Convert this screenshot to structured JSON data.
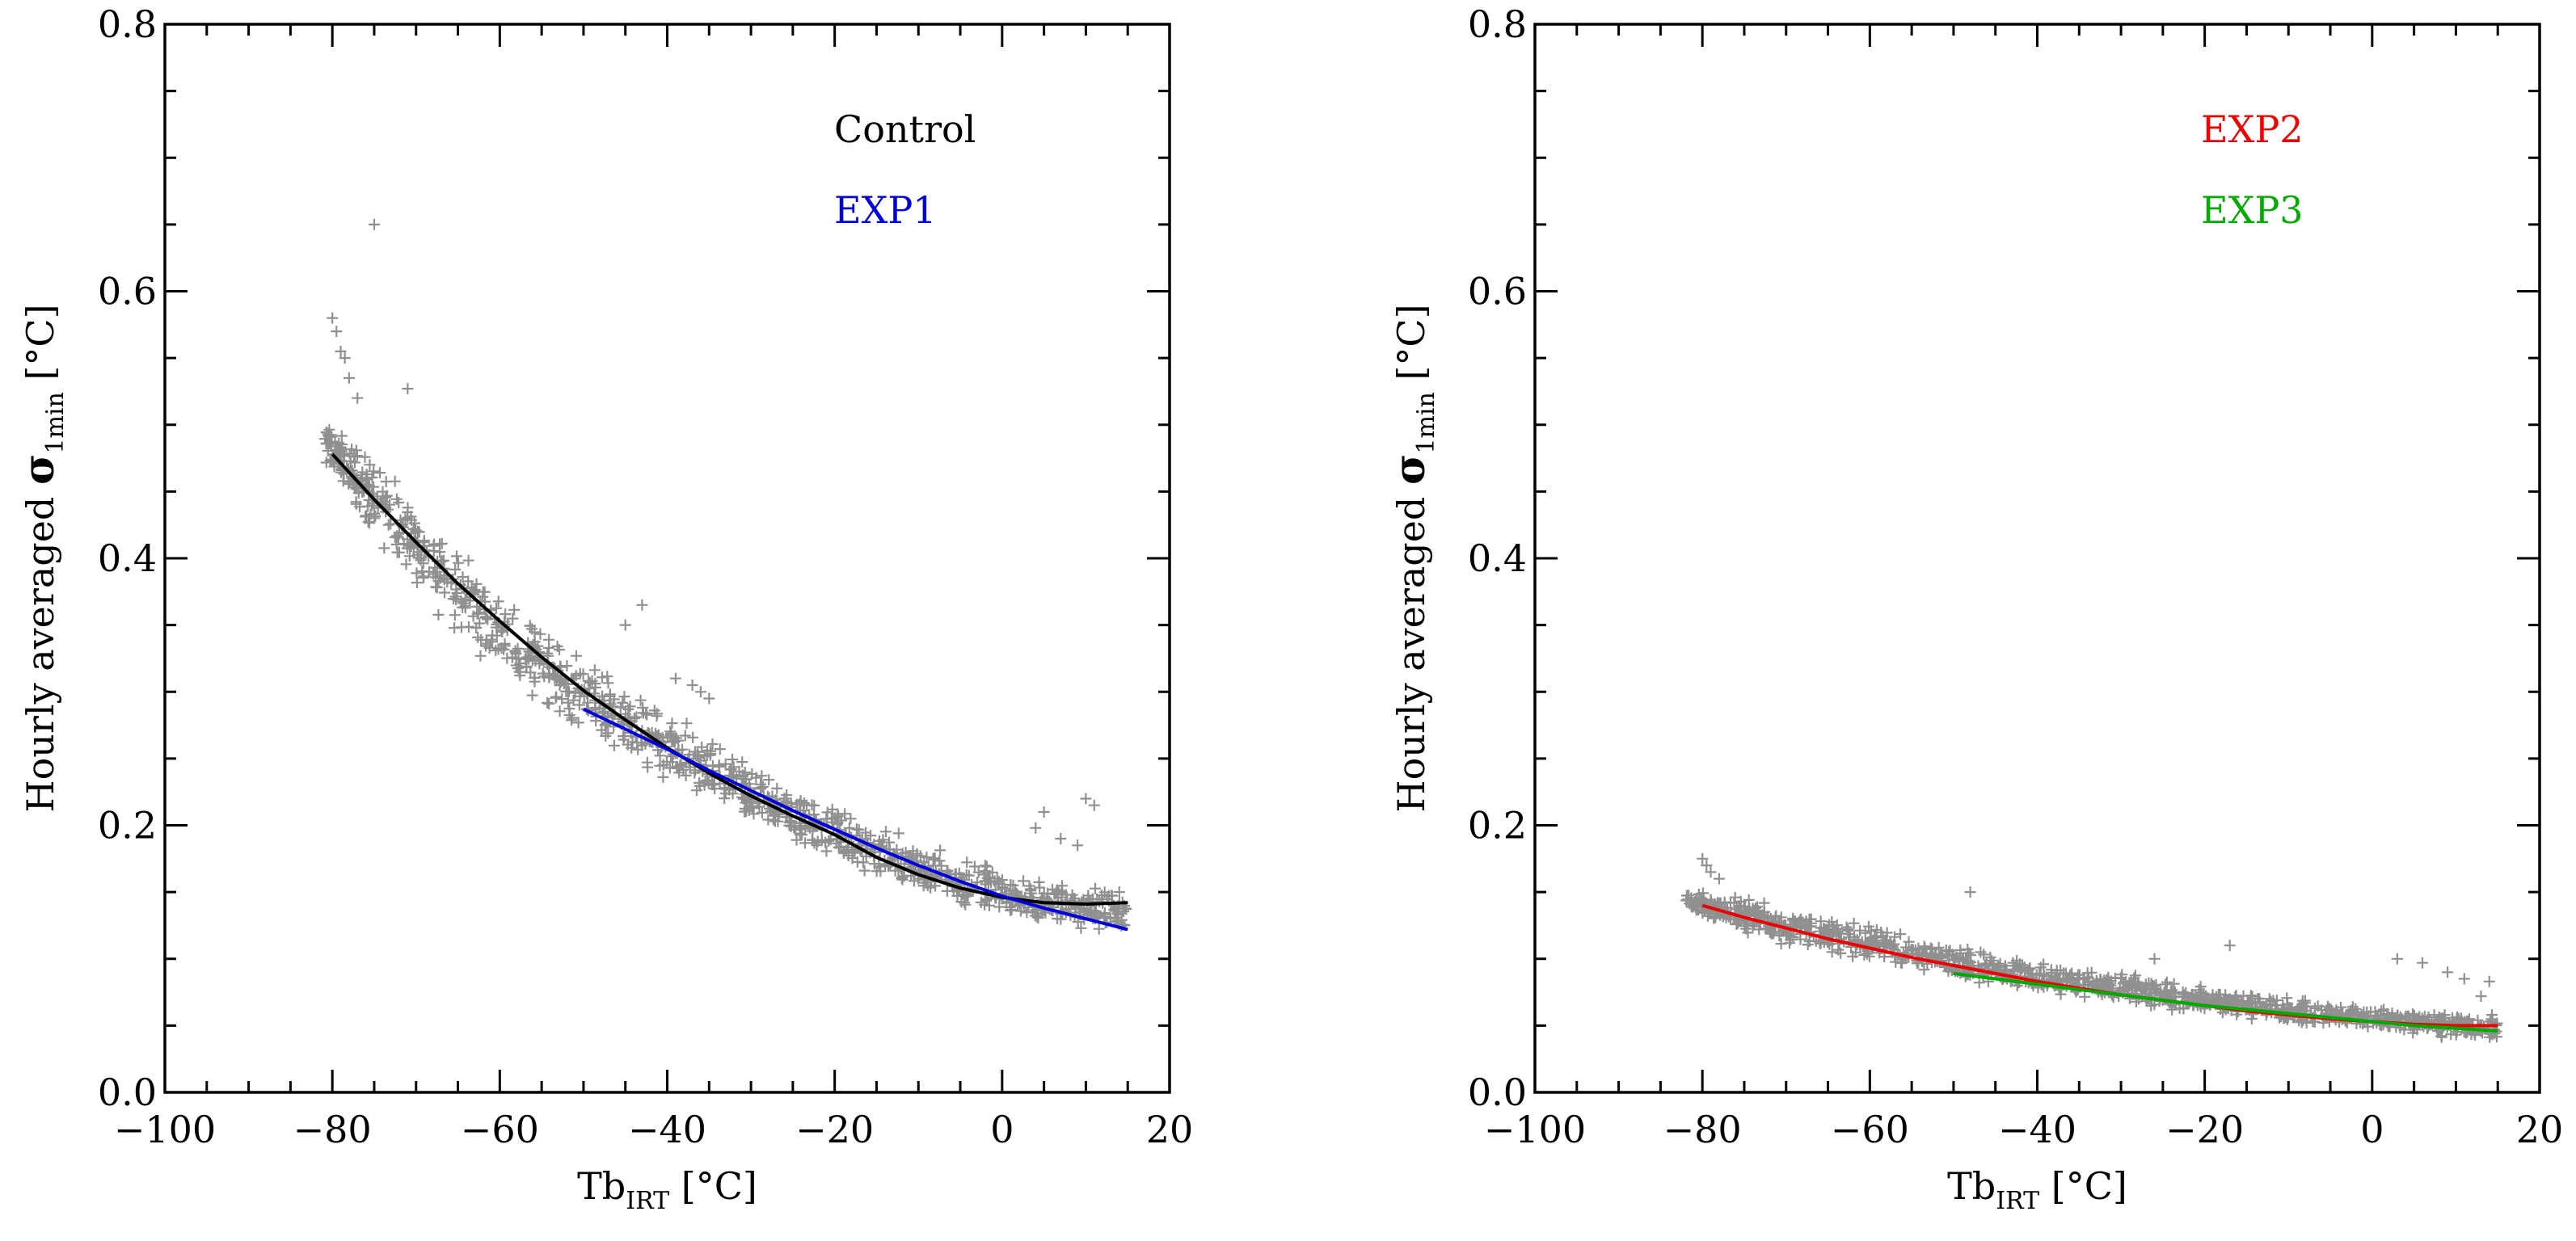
{
  "chart_data": [
    {
      "type": "scatter",
      "panel": "left",
      "xlabel": {
        "base": "Tb",
        "sub": "IRT",
        "unit": " [°C]"
      },
      "ylabel": {
        "prefix": "Hourly averaged ",
        "sigma": "σ",
        "sub": "1min",
        "unit": " [°C]"
      },
      "xlim": [
        -100,
        20
      ],
      "ylim": [
        0.0,
        0.8
      ],
      "xticks": [
        -100,
        -80,
        -60,
        -40,
        -20,
        0,
        20
      ],
      "xtick_labels": [
        "−100",
        "−80",
        "−60",
        "−40",
        "−20",
        "0",
        "20"
      ],
      "yticks": [
        0.0,
        0.2,
        0.4,
        0.6,
        0.8
      ],
      "ytick_labels": [
        "0.0",
        "0.2",
        "0.4",
        "0.6",
        "0.8"
      ],
      "legend_position": "top-right",
      "scatter": {
        "color": "#909090",
        "marker": "+",
        "band": [
          {
            "x": -81,
            "lo": 0.47,
            "hi": 0.505
          },
          {
            "x": -78,
            "lo": 0.44,
            "hi": 0.495
          },
          {
            "x": -75,
            "lo": 0.41,
            "hi": 0.48
          },
          {
            "x": -70,
            "lo": 0.37,
            "hi": 0.45
          },
          {
            "x": -65,
            "lo": 0.335,
            "hi": 0.415
          },
          {
            "x": -60,
            "lo": 0.31,
            "hi": 0.385
          },
          {
            "x": -55,
            "lo": 0.285,
            "hi": 0.355
          },
          {
            "x": -50,
            "lo": 0.265,
            "hi": 0.33
          },
          {
            "x": -45,
            "lo": 0.245,
            "hi": 0.31
          },
          {
            "x": -40,
            "lo": 0.225,
            "hi": 0.29
          },
          {
            "x": -35,
            "lo": 0.21,
            "hi": 0.27
          },
          {
            "x": -30,
            "lo": 0.195,
            "hi": 0.25
          },
          {
            "x": -25,
            "lo": 0.18,
            "hi": 0.235
          },
          {
            "x": -20,
            "lo": 0.165,
            "hi": 0.22
          },
          {
            "x": -15,
            "lo": 0.155,
            "hi": 0.205
          },
          {
            "x": -10,
            "lo": 0.145,
            "hi": 0.19
          },
          {
            "x": -5,
            "lo": 0.135,
            "hi": 0.18
          },
          {
            "x": 0,
            "lo": 0.128,
            "hi": 0.172
          },
          {
            "x": 5,
            "lo": 0.122,
            "hi": 0.165
          },
          {
            "x": 10,
            "lo": 0.116,
            "hi": 0.16
          },
          {
            "x": 15,
            "lo": 0.112,
            "hi": 0.155
          }
        ],
        "outliers": [
          {
            "x": -75,
            "y": 0.65
          },
          {
            "x": -80,
            "y": 0.58
          },
          {
            "x": -79.5,
            "y": 0.57
          },
          {
            "x": -79,
            "y": 0.555
          },
          {
            "x": -78.5,
            "y": 0.55
          },
          {
            "x": -78,
            "y": 0.535
          },
          {
            "x": -71,
            "y": 0.527
          },
          {
            "x": -77,
            "y": 0.52
          },
          {
            "x": -43,
            "y": 0.365
          },
          {
            "x": -45,
            "y": 0.35
          },
          {
            "x": -39,
            "y": 0.31
          },
          {
            "x": -36,
            "y": 0.3
          },
          {
            "x": -35,
            "y": 0.295
          },
          {
            "x": -37,
            "y": 0.305
          },
          {
            "x": 10,
            "y": 0.22
          },
          {
            "x": 11,
            "y": 0.215
          },
          {
            "x": 5,
            "y": 0.21
          },
          {
            "x": 4,
            "y": 0.198
          },
          {
            "x": 7,
            "y": 0.19
          },
          {
            "x": 9,
            "y": 0.185
          },
          {
            "x": 14,
            "y": 0.15
          }
        ]
      },
      "series": [
        {
          "name": "Control",
          "color": "#000000",
          "x": [
            -80,
            -75,
            -70,
            -65,
            -60,
            -55,
            -50,
            -45,
            -40,
            -35,
            -30,
            -25,
            -20,
            -15,
            -10,
            -5,
            0,
            5,
            10,
            15
          ],
          "y": [
            0.478,
            0.444,
            0.412,
            0.381,
            0.353,
            0.326,
            0.301,
            0.279,
            0.258,
            0.239,
            0.222,
            0.207,
            0.193,
            0.176,
            0.163,
            0.153,
            0.146,
            0.142,
            0.141,
            0.142
          ]
        },
        {
          "name": "EXP1",
          "color": "#0000DD",
          "x": [
            -50,
            -45,
            -40,
            -35,
            -30,
            -25,
            -20,
            -15,
            -10,
            -5,
            0,
            5,
            10,
            15
          ],
          "y": [
            0.287,
            0.272,
            0.257,
            0.241,
            0.226,
            0.211,
            0.197,
            0.183,
            0.17,
            0.158,
            0.147,
            0.138,
            0.13,
            0.122
          ]
        }
      ]
    },
    {
      "type": "scatter",
      "panel": "right",
      "xlabel": {
        "base": "Tb",
        "sub": "IRT",
        "unit": " [°C]"
      },
      "ylabel": {
        "prefix": "Hourly averaged ",
        "sigma": "σ",
        "sub": "1min",
        "unit": " [°C]"
      },
      "xlim": [
        -100,
        20
      ],
      "ylim": [
        0.0,
        0.8
      ],
      "xticks": [
        -100,
        -80,
        -60,
        -40,
        -20,
        0,
        20
      ],
      "xtick_labels": [
        "−100",
        "−80",
        "−60",
        "−40",
        "−20",
        "0",
        "20"
      ],
      "yticks": [
        0.0,
        0.2,
        0.4,
        0.6,
        0.8
      ],
      "ytick_labels": [
        "0.0",
        "0.2",
        "0.4",
        "0.6",
        "0.8"
      ],
      "legend_position": "top-right",
      "scatter": {
        "color": "#909090",
        "marker": "+",
        "band": [
          {
            "x": -82,
            "lo": 0.135,
            "hi": 0.155
          },
          {
            "x": -78,
            "lo": 0.122,
            "hi": 0.15
          },
          {
            "x": -74,
            "lo": 0.115,
            "hi": 0.148
          },
          {
            "x": -70,
            "lo": 0.108,
            "hi": 0.142
          },
          {
            "x": -65,
            "lo": 0.101,
            "hi": 0.135
          },
          {
            "x": -60,
            "lo": 0.095,
            "hi": 0.127
          },
          {
            "x": -55,
            "lo": 0.089,
            "hi": 0.12
          },
          {
            "x": -50,
            "lo": 0.084,
            "hi": 0.113
          },
          {
            "x": -45,
            "lo": 0.078,
            "hi": 0.107
          },
          {
            "x": -40,
            "lo": 0.073,
            "hi": 0.101
          },
          {
            "x": -35,
            "lo": 0.068,
            "hi": 0.096
          },
          {
            "x": -30,
            "lo": 0.064,
            "hi": 0.091
          },
          {
            "x": -25,
            "lo": 0.06,
            "hi": 0.086
          },
          {
            "x": -20,
            "lo": 0.056,
            "hi": 0.081
          },
          {
            "x": -15,
            "lo": 0.053,
            "hi": 0.077
          },
          {
            "x": -10,
            "lo": 0.05,
            "hi": 0.073
          },
          {
            "x": -5,
            "lo": 0.047,
            "hi": 0.07
          },
          {
            "x": 0,
            "lo": 0.044,
            "hi": 0.067
          },
          {
            "x": 5,
            "lo": 0.041,
            "hi": 0.064
          },
          {
            "x": 10,
            "lo": 0.039,
            "hi": 0.062
          },
          {
            "x": 15,
            "lo": 0.036,
            "hi": 0.06
          }
        ],
        "outliers": [
          {
            "x": -80,
            "y": 0.175
          },
          {
            "x": -79.5,
            "y": 0.17
          },
          {
            "x": -79,
            "y": 0.165
          },
          {
            "x": -78,
            "y": 0.16
          },
          {
            "x": -48,
            "y": 0.15
          },
          {
            "x": -17,
            "y": 0.11
          },
          {
            "x": -26,
            "y": 0.1
          },
          {
            "x": 3,
            "y": 0.1
          },
          {
            "x": 6,
            "y": 0.097
          },
          {
            "x": 9,
            "y": 0.09
          },
          {
            "x": 11,
            "y": 0.085
          },
          {
            "x": 14,
            "y": 0.083
          },
          {
            "x": 13,
            "y": 0.072
          }
        ]
      },
      "series": [
        {
          "name": "EXP2",
          "color": "#EE0000",
          "x": [
            -80,
            -75,
            -70,
            -65,
            -60,
            -55,
            -50,
            -45,
            -40,
            -35,
            -30,
            -25,
            -20,
            -15,
            -10,
            -5,
            0,
            5,
            10,
            15
          ],
          "y": [
            0.14,
            0.131,
            0.123,
            0.115,
            0.108,
            0.101,
            0.095,
            0.089,
            0.083,
            0.078,
            0.073,
            0.069,
            0.065,
            0.061,
            0.058,
            0.055,
            0.053,
            0.051,
            0.05,
            0.05
          ]
        },
        {
          "name": "EXP3",
          "color": "#00AA00",
          "x": [
            -50,
            -45,
            -40,
            -35,
            -30,
            -25,
            -20,
            -15,
            -10,
            -5,
            0,
            5,
            10,
            15
          ],
          "y": [
            0.089,
            0.085,
            0.081,
            0.077,
            0.073,
            0.069,
            0.065,
            0.062,
            0.059,
            0.056,
            0.053,
            0.05,
            0.048,
            0.046
          ]
        }
      ]
    }
  ]
}
